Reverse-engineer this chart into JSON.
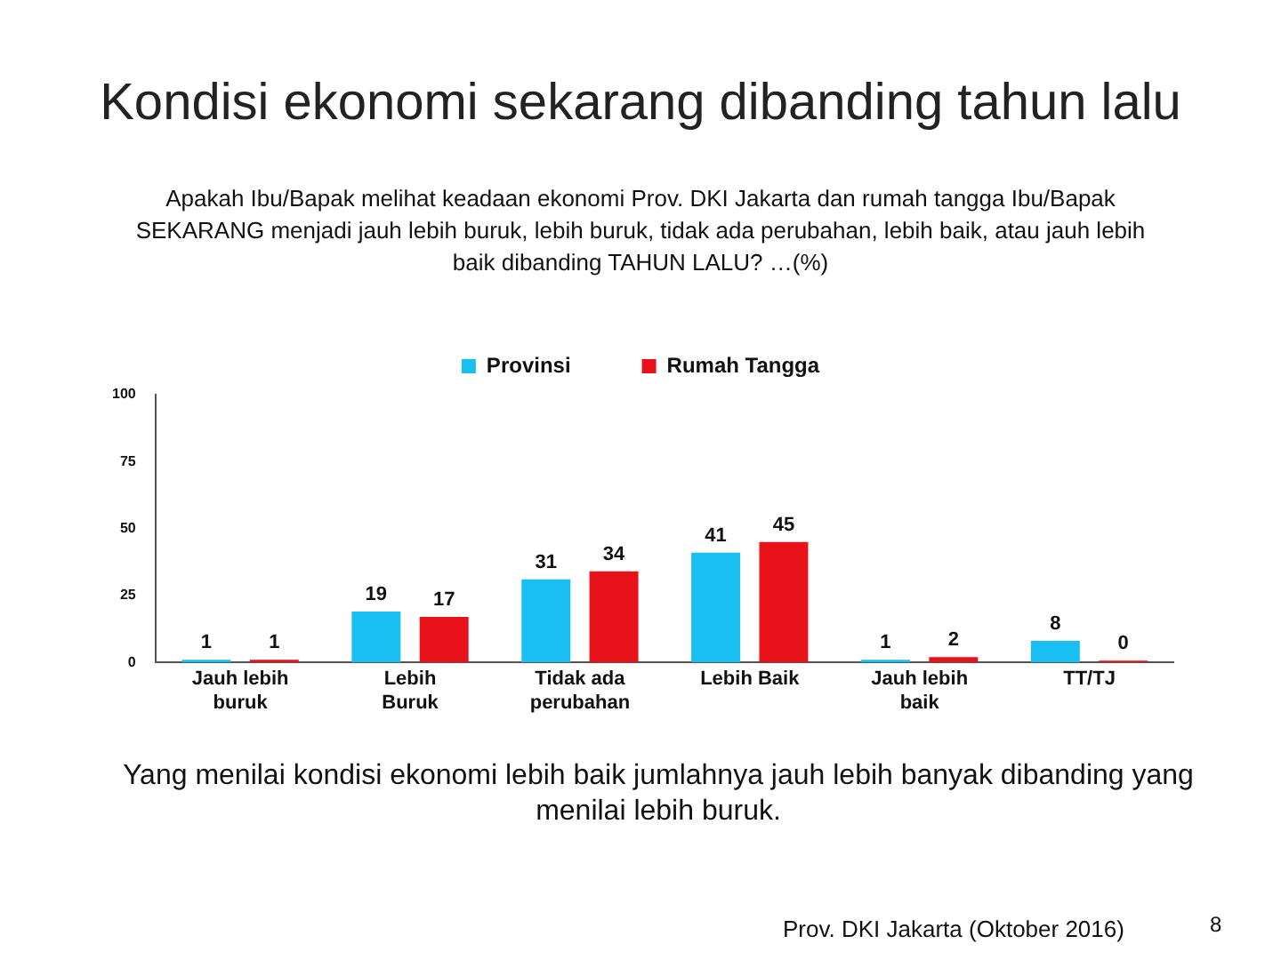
{
  "chart_data": {
    "type": "bar",
    "title": "Kondisi ekonomi sekarang dibanding tahun lalu",
    "subtitle": "Apakah Ibu/Bapak melihat keadaan ekonomi Prov. DKI Jakarta dan rumah tangga Ibu/Bapak SEKARANG menjadi jauh lebih buruk, lebih buruk, tidak ada perubahan, lebih baik, atau jauh lebih baik dibanding TAHUN LALU? …(%)",
    "categories": [
      "Jauh lebih buruk",
      "Lebih Buruk",
      "Tidak ada perubahan",
      "Lebih Baik",
      "Jauh lebih baik",
      "TT/TJ"
    ],
    "series": [
      {
        "name": "Provinsi",
        "color": "#19bff2",
        "values": [
          1,
          19,
          31,
          41,
          1,
          8
        ]
      },
      {
        "name": "Rumah Tangga",
        "color": "#e8131a",
        "values": [
          1,
          17,
          34,
          45,
          2,
          0
        ]
      }
    ],
    "ylim": [
      0,
      100
    ],
    "yticks": [
      0,
      25,
      50,
      75,
      100
    ],
    "grid": false,
    "legend": "top",
    "data_labels": true,
    "annotations": [
      "Yang menilai kondisi ekonomi lebih baik jumlahnya jauh lebih banyak dibanding yang menilai lebih buruk.",
      "Prov. DKI Jakarta (Oktober 2016)",
      "8"
    ]
  }
}
